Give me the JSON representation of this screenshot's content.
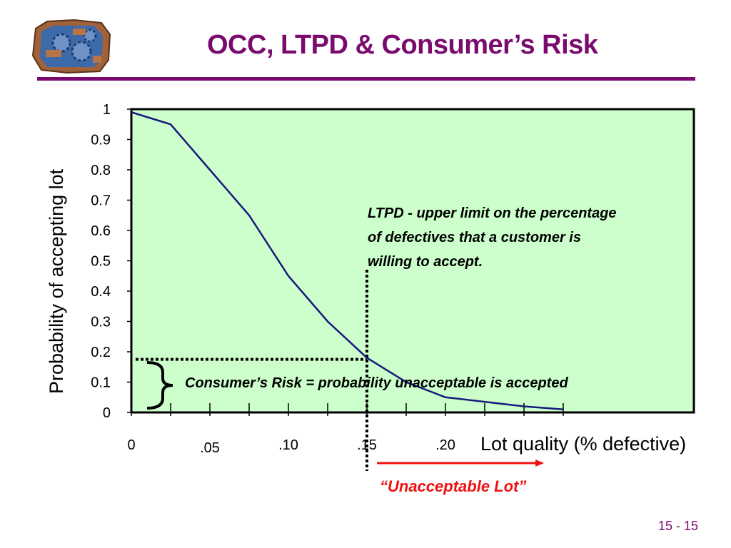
{
  "slide": {
    "title": "OCC, LTPD & Consumer’s Risk",
    "page_number": "15 - 15"
  },
  "annotations": {
    "ltpd_lines": [
      "LTPD - upper limit on the percentage",
      "of defectives that a customer is",
      "willing to accept."
    ],
    "consumer_risk": "Consumer’s Risk = probability unacceptable is accepted",
    "unacceptable_lot": "“Unacceptable  Lot”"
  },
  "colors": {
    "title": "#7a0a6e",
    "plot_background": "#ccffcc",
    "curve": "#1a1a7a",
    "arrow": "#ee1111"
  },
  "chart_data": {
    "type": "line",
    "xlabel": "Lot quality (% defective)",
    "ylabel": "Probability of accepting lot",
    "ylim": [
      0,
      1
    ],
    "y_ticks": [
      "0",
      "0.1",
      "0.2",
      "0.3",
      "0.4",
      "0.5",
      "0.6",
      "0.7",
      "0.8",
      "0.9",
      "1"
    ],
    "x_tick_labels": [
      {
        "label": "0",
        "value": 0
      },
      {
        "label": ".05",
        "value": 0.05
      },
      {
        "label": ".10",
        "value": 0.1
      },
      {
        "label": ".15",
        "value": 0.15
      },
      {
        "label": ".20",
        "value": 0.2
      }
    ],
    "x": [
      0,
      0.025,
      0.05,
      0.075,
      0.1,
      0.125,
      0.15,
      0.175,
      0.2,
      0.225,
      0.25,
      0.275
    ],
    "series": [
      {
        "values": [
          0.99,
          0.95,
          0.8,
          0.65,
          0.45,
          0.3,
          0.18,
          0.1,
          0.05,
          0.035,
          0.02,
          0.01
        ]
      }
    ],
    "ltpd_x": 0.15,
    "consumer_risk_y": 0.175,
    "grid": false
  }
}
